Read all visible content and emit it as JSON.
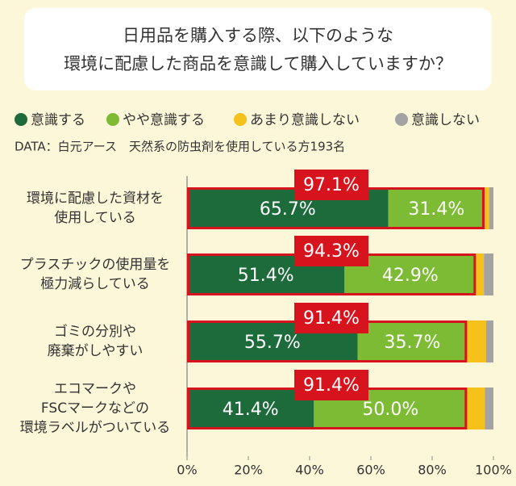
{
  "chart_data": {
    "type": "stacked-bar-horizontal",
    "title": [
      "日用品を購入する際、以下のような",
      "環境に配慮した商品を意識して購入していますか？"
    ],
    "subtitle": "DATA：白元アース　天然系の防虫剤を使用している方193名",
    "categories": [
      [
        "環境に配慮した資材を",
        "使用している"
      ],
      [
        "プラスチックの使用量を",
        "極力減らしている"
      ],
      [
        "ゴミの分別や",
        "廃棄がしやすい"
      ],
      [
        "エコマークや",
        "FSCマークなどの",
        "環境ラベルがついている"
      ]
    ],
    "series": [
      {
        "name": "意識する",
        "color": "#1d6b3b",
        "values": [
          65.7,
          51.4,
          55.7,
          41.4
        ],
        "value_labels": [
          "65.7%",
          "51.4%",
          "55.7%",
          "41.4%"
        ]
      },
      {
        "name": "やや意識する",
        "color": "#7dbb35",
        "values": [
          31.4,
          42.9,
          35.7,
          50.0
        ],
        "value_labels": [
          "31.4%",
          "42.9%",
          "35.7%",
          "50.0%"
        ]
      },
      {
        "name": "あまり意識しない",
        "color": "#f5c11a",
        "values": [
          1.5,
          2.6,
          6.2,
          5.8
        ]
      },
      {
        "name": "意識しない",
        "color": "#a3a3a3",
        "values": [
          1.4,
          3.1,
          2.4,
          2.8
        ]
      }
    ],
    "totals": {
      "color": "#d7141d",
      "values": [
        97.1,
        94.3,
        91.4,
        91.4
      ],
      "value_labels": [
        "97.1%",
        "94.3%",
        "91.4%",
        "91.4%"
      ]
    },
    "xlim": [
      0,
      100
    ],
    "xticks": [
      {
        "value": 0,
        "label": "0%"
      },
      {
        "value": 20,
        "label": "20%"
      },
      {
        "value": 40,
        "label": "40%"
      },
      {
        "value": 60,
        "label": "60%"
      },
      {
        "value": 80,
        "label": "80%"
      },
      {
        "value": 100,
        "label": "100%"
      }
    ]
  }
}
